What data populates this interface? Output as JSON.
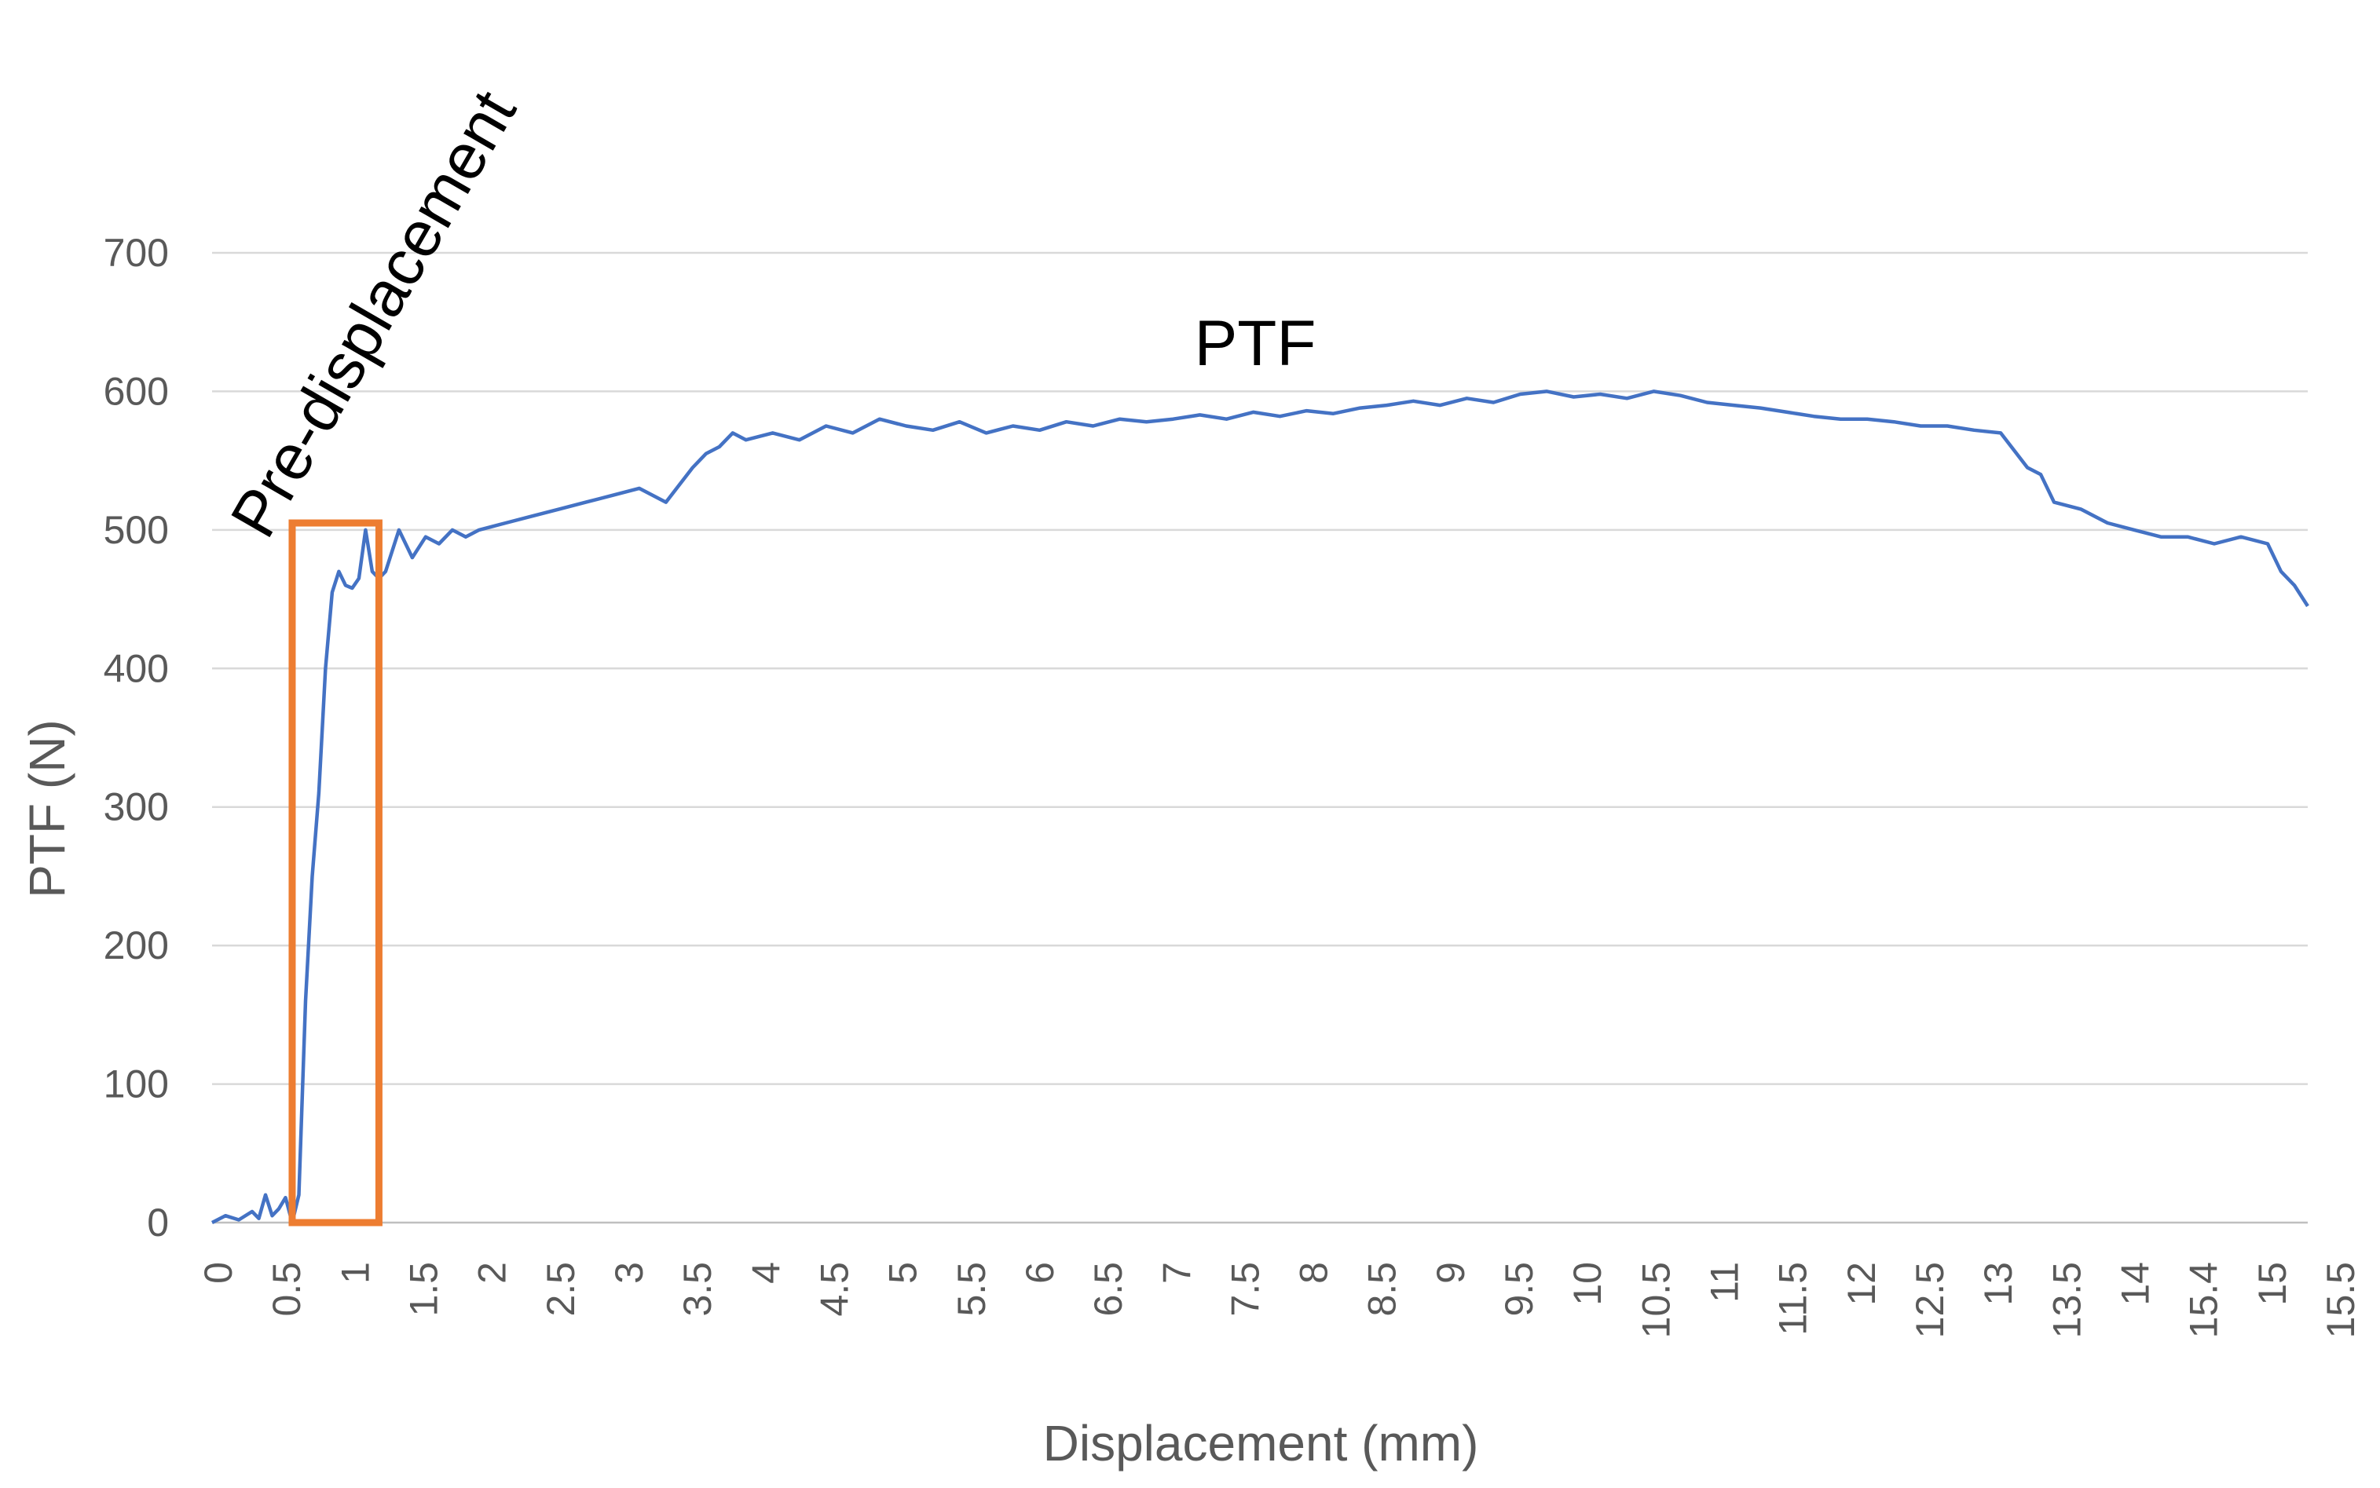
{
  "chart_data": {
    "type": "line",
    "title": "",
    "xlabel": "Displacement (mm)",
    "ylabel": "PTF (N)",
    "ylim": [
      0,
      700
    ],
    "yticks": [
      0,
      100,
      200,
      300,
      400,
      500,
      600,
      700
    ],
    "x_tick_labels": [
      "0",
      "0.5",
      "1",
      "1.5",
      "2",
      "2.5",
      "3",
      "3.5",
      "4",
      "4.5",
      "5",
      "5.5",
      "6",
      "6.5",
      "7",
      "7.5",
      "8",
      "8.5",
      "9",
      "9.5",
      "10",
      "10.5",
      "11",
      "11.5",
      "12",
      "12.5",
      "13",
      "13.5",
      "14",
      "15.4",
      "15",
      "15.5"
    ],
    "grid": true,
    "legend": "none",
    "colors": {
      "series": "#4472C4",
      "highlight": "#ED7D31",
      "grid": "#D9D9D9"
    },
    "annotations": [
      {
        "name": "pre-displacement-label",
        "text": "Pre-displacement"
      },
      {
        "name": "ptf-label",
        "text": "PTF"
      }
    ],
    "highlight_region": {
      "x_start": 0.6,
      "x_end": 1.25,
      "y_start": 0,
      "y_end": 505
    },
    "series": [
      {
        "name": "PTF",
        "x": [
          0,
          0.1,
          0.2,
          0.3,
          0.35,
          0.4,
          0.45,
          0.5,
          0.55,
          0.6,
          0.65,
          0.7,
          0.75,
          0.8,
          0.85,
          0.9,
          0.95,
          1.0,
          1.05,
          1.1,
          1.15,
          1.2,
          1.25,
          1.3,
          1.4,
          1.5,
          1.6,
          1.7,
          1.8,
          1.9,
          2.0,
          2.2,
          2.4,
          2.6,
          2.8,
          3.0,
          3.2,
          3.4,
          3.6,
          3.7,
          3.8,
          3.9,
          4.0,
          4.2,
          4.4,
          4.6,
          4.8,
          5.0,
          5.2,
          5.4,
          5.6,
          5.8,
          6.0,
          6.2,
          6.4,
          6.6,
          6.8,
          7.0,
          7.2,
          7.4,
          7.6,
          7.8,
          8.0,
          8.2,
          8.4,
          8.6,
          8.8,
          9.0,
          9.2,
          9.4,
          9.6,
          9.8,
          10.0,
          10.2,
          10.4,
          10.6,
          10.8,
          11.0,
          11.2,
          11.4,
          11.6,
          11.8,
          12.0,
          12.2,
          12.4,
          12.6,
          12.8,
          13.0,
          13.2,
          13.4,
          13.6,
          13.7,
          13.8,
          14.0,
          14.2,
          14.4,
          14.6,
          14.8,
          15.0,
          15.2,
          15.4,
          15.5,
          15.6,
          15.7
        ],
        "values": [
          0,
          5,
          2,
          8,
          3,
          20,
          5,
          10,
          18,
          0,
          20,
          160,
          250,
          310,
          400,
          455,
          470,
          460,
          458,
          465,
          500,
          470,
          465,
          470,
          500,
          480,
          495,
          490,
          500,
          495,
          500,
          505,
          510,
          515,
          520,
          525,
          530,
          520,
          545,
          555,
          560,
          570,
          565,
          570,
          565,
          575,
          570,
          580,
          575,
          572,
          578,
          570,
          575,
          572,
          578,
          575,
          580,
          578,
          580,
          583,
          580,
          585,
          582,
          586,
          584,
          588,
          590,
          593,
          590,
          595,
          592,
          598,
          600,
          596,
          598,
          595,
          600,
          597,
          592,
          590,
          588,
          585,
          582,
          580,
          580,
          578,
          575,
          575,
          572,
          570,
          545,
          540,
          520,
          515,
          505,
          500,
          495,
          495,
          490,
          495,
          490,
          470,
          460,
          445
        ]
      }
    ]
  }
}
